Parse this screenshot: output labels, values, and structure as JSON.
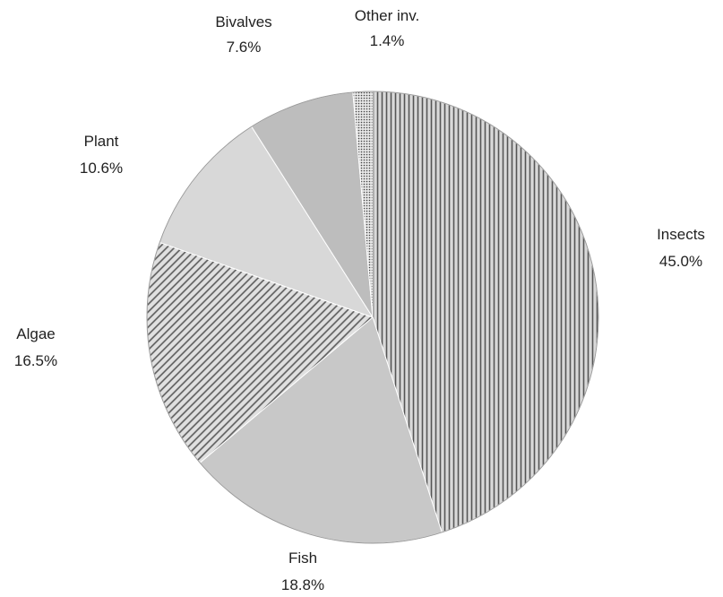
{
  "chart_data": {
    "type": "pie",
    "title": "",
    "slices": [
      {
        "name": "Insects",
        "value": 45.0,
        "label": "45.0%",
        "pattern": "vertical-lines",
        "color": "#8e8e8e"
      },
      {
        "name": "Fish",
        "value": 18.8,
        "label": "18.8%",
        "pattern": "solid",
        "color": "#c8c8c8"
      },
      {
        "name": "Algae",
        "value": 16.5,
        "label": "16.5%",
        "pattern": "diagonal-lines",
        "color": "#9a9a9a"
      },
      {
        "name": "Plant",
        "value": 10.6,
        "label": "10.6%",
        "pattern": "solid",
        "color": "#d8d8d8"
      },
      {
        "name": "Bivalves",
        "value": 7.6,
        "label": "7.6%",
        "pattern": "solid",
        "color": "#bdbdbd"
      },
      {
        "name": "Other inv.",
        "value": 1.4,
        "label": "1.4%",
        "pattern": "dots",
        "color": "#b0b0b0"
      }
    ],
    "start_angle": "12 o'clock",
    "direction": "clockwise",
    "legend": "none (labels beside slices)"
  }
}
